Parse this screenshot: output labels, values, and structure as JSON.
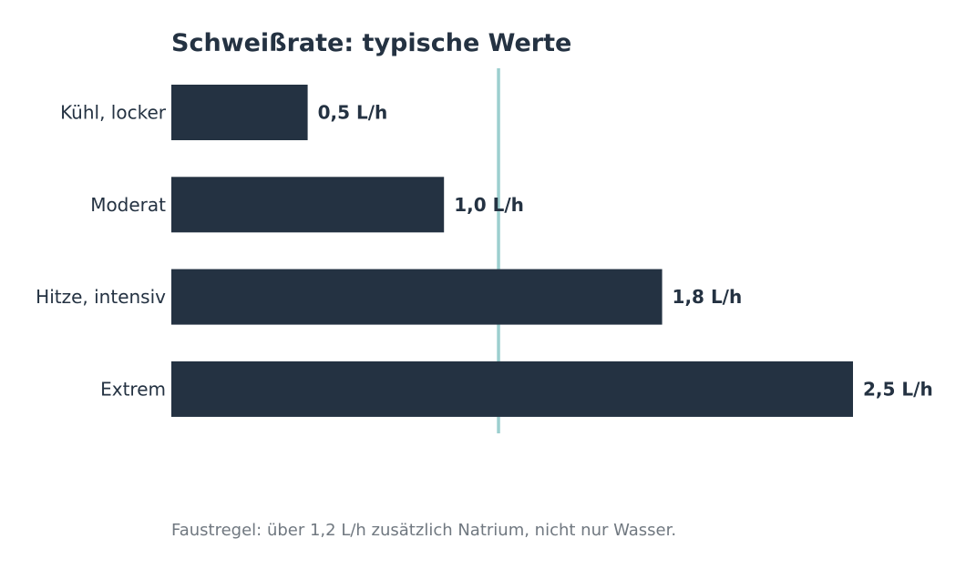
{
  "chart_data": {
    "type": "bar",
    "orientation": "horizontal",
    "title": "Schweißrate: typische Werte",
    "xlabel": "",
    "ylabel": "",
    "categories": [
      "Kühl, locker",
      "Moderat",
      "Hitze, intensiv",
      "Extrem"
    ],
    "values": [
      0.5,
      1.0,
      1.8,
      2.5
    ],
    "value_labels": [
      "0,5 L/h",
      "1,0 L/h",
      "1,8 L/h",
      "2,5 L/h"
    ],
    "unit": "L/h",
    "xlim": [
      0,
      2.5
    ],
    "reference_line": {
      "value": 1.2,
      "color": "#9ccfcf"
    },
    "bar_color": "#243242",
    "grid": false,
    "footnote": "Faustregel: über 1,2 L/h zusätzlich Natrium, nicht nur Wasser."
  }
}
